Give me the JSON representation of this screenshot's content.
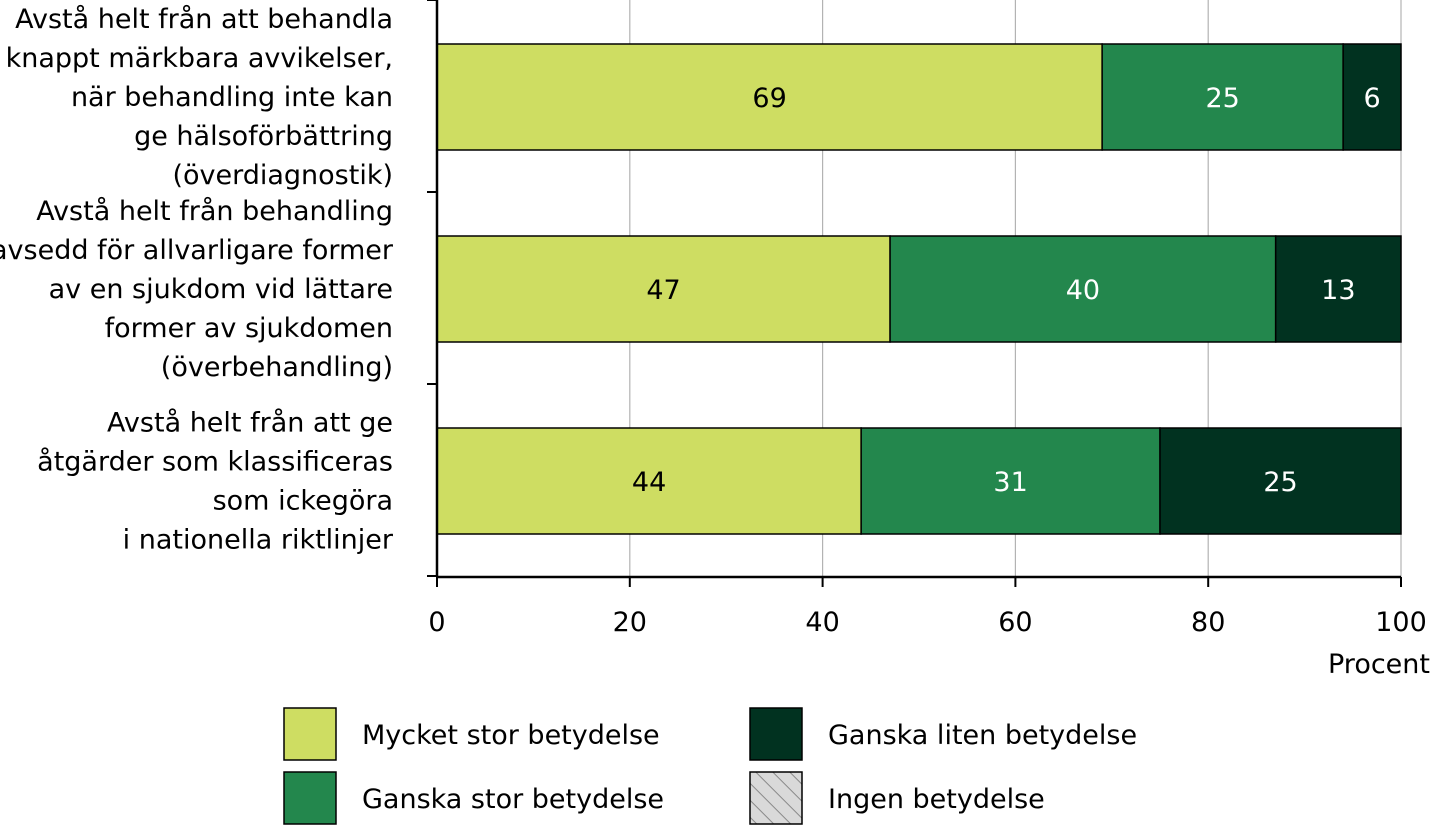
{
  "chart_data": {
    "type": "bar",
    "orientation": "horizontal",
    "stacked": true,
    "title": "",
    "xlabel": "Procent",
    "ylabel": "",
    "xlim": [
      0,
      100
    ],
    "x_ticks": [
      0,
      20,
      40,
      60,
      80,
      100
    ],
    "grid": true,
    "categories": [
      [
        "Avstå helt från att behandla",
        "knappt märkbara avvikelser,",
        "när behandling inte kan",
        "ge hälsoförbättring",
        "(överdiagnostik)"
      ],
      [
        "Avstå helt från behandling",
        "avsedd för allvarligare former",
        "av en sjukdom vid lättare",
        "former av sjukdomen",
        "(överbehandling)"
      ],
      [
        "Avstå helt från att ge",
        "åtgärder som klassificeras",
        "som ickegöra",
        "i nationella riktlinjer"
      ]
    ],
    "series": [
      {
        "name": "Mycket stor betydelse",
        "color": "#cedd62",
        "label_color": "#000000",
        "values": [
          69,
          47,
          44
        ]
      },
      {
        "name": "Ganska stor betydelse",
        "color": "#23874d",
        "label_color": "#ffffff",
        "values": [
          25,
          40,
          31
        ]
      },
      {
        "name": "Ganska liten betydelse",
        "color": "#013220",
        "label_color": "#ffffff",
        "values": [
          6,
          13,
          25
        ]
      },
      {
        "name": "Ingen betydelse",
        "color": "hatched-gray",
        "label_color": "#000000",
        "values": [
          0,
          0,
          0
        ]
      }
    ],
    "legend_position": "bottom",
    "legend_order": [
      0,
      2,
      1,
      3
    ]
  }
}
